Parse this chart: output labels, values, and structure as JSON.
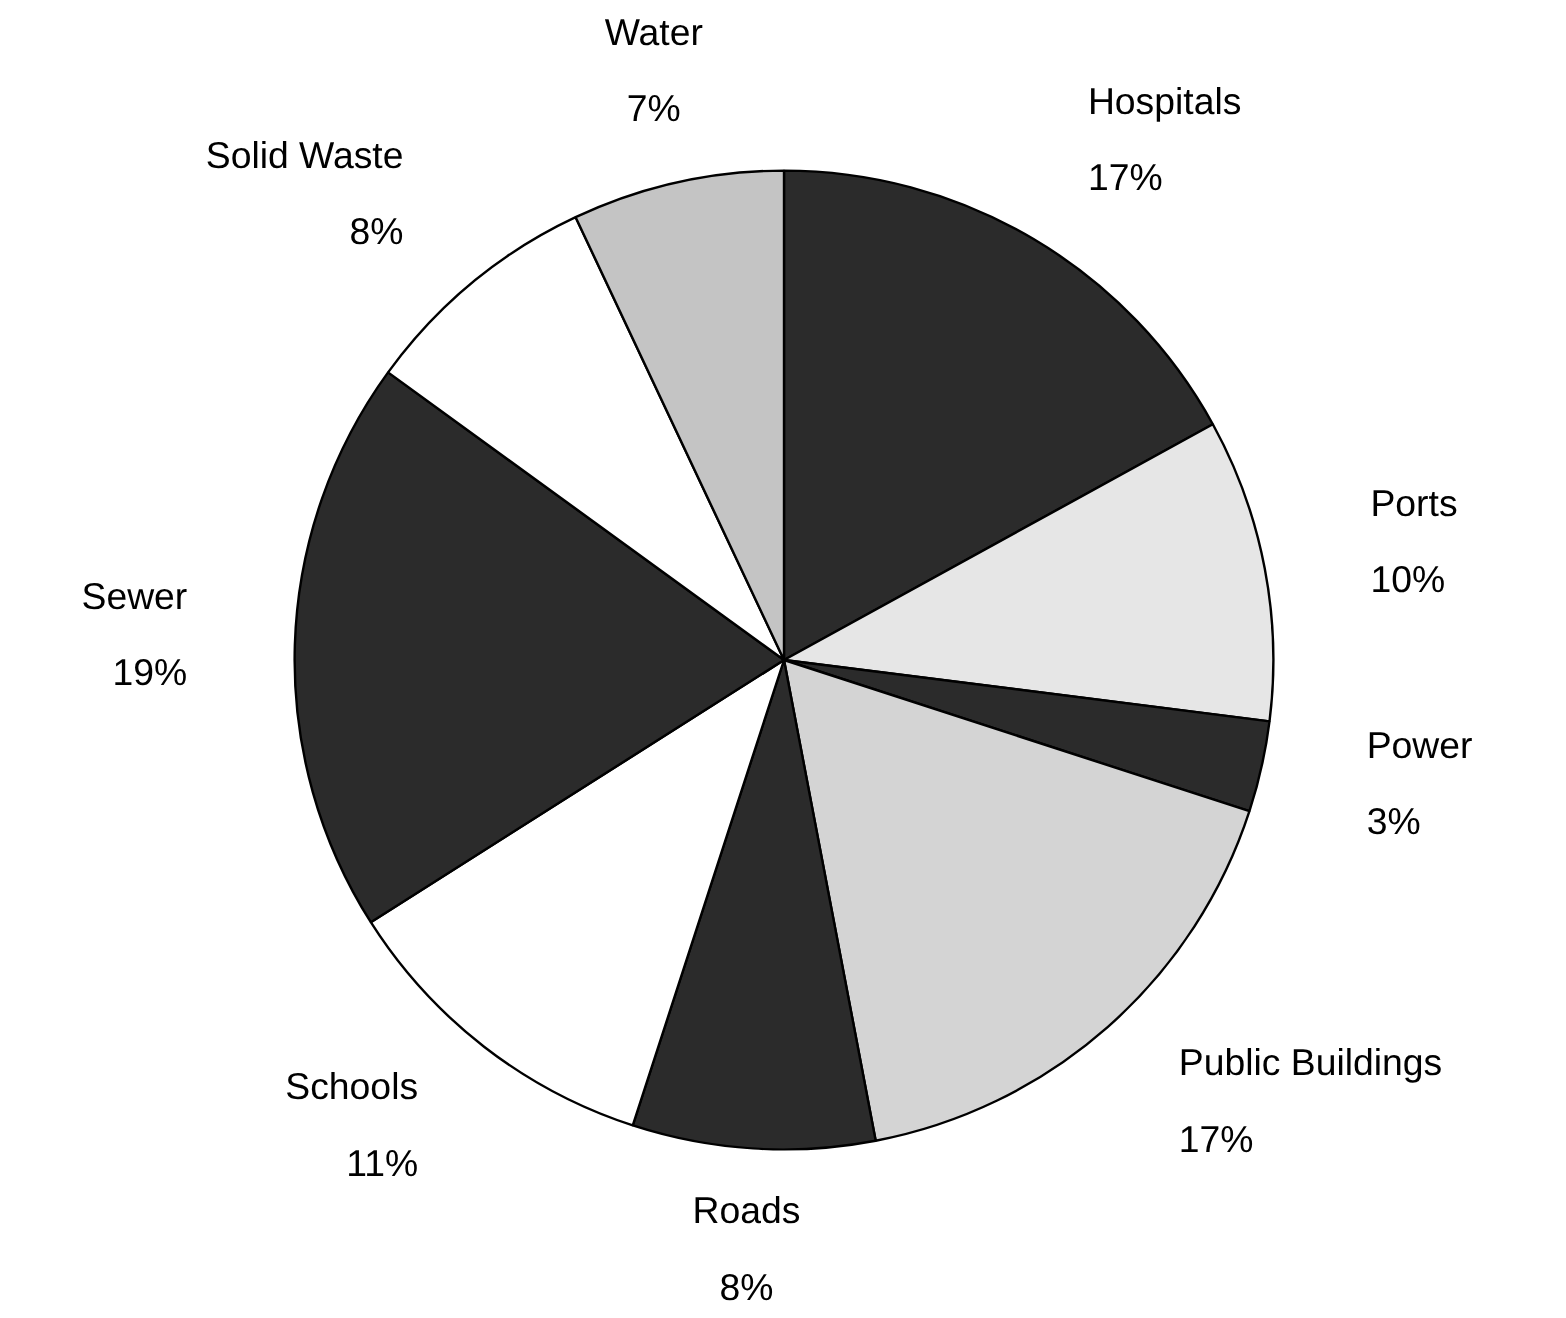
{
  "chart_data": {
    "type": "pie",
    "categories": [
      "Hospitals",
      "Ports",
      "Power",
      "Public Buildings",
      "Roads",
      "Schools",
      "Sewer",
      "Solid Waste",
      "Water"
    ],
    "values": [
      17,
      10,
      3,
      17,
      8,
      11,
      19,
      8,
      7
    ],
    "colors": [
      "#2b2b2b",
      "#e6e6e6",
      "#2b2b2b",
      "#d4d4d4",
      "#2b2b2b",
      "#ffffff",
      "#2b2b2b",
      "#ffffff",
      "#c4c4c4"
    ],
    "value_labels": [
      "17%",
      "10%",
      "3%",
      "17%",
      "8%",
      "11%",
      "19%",
      "8%",
      "7%"
    ]
  }
}
